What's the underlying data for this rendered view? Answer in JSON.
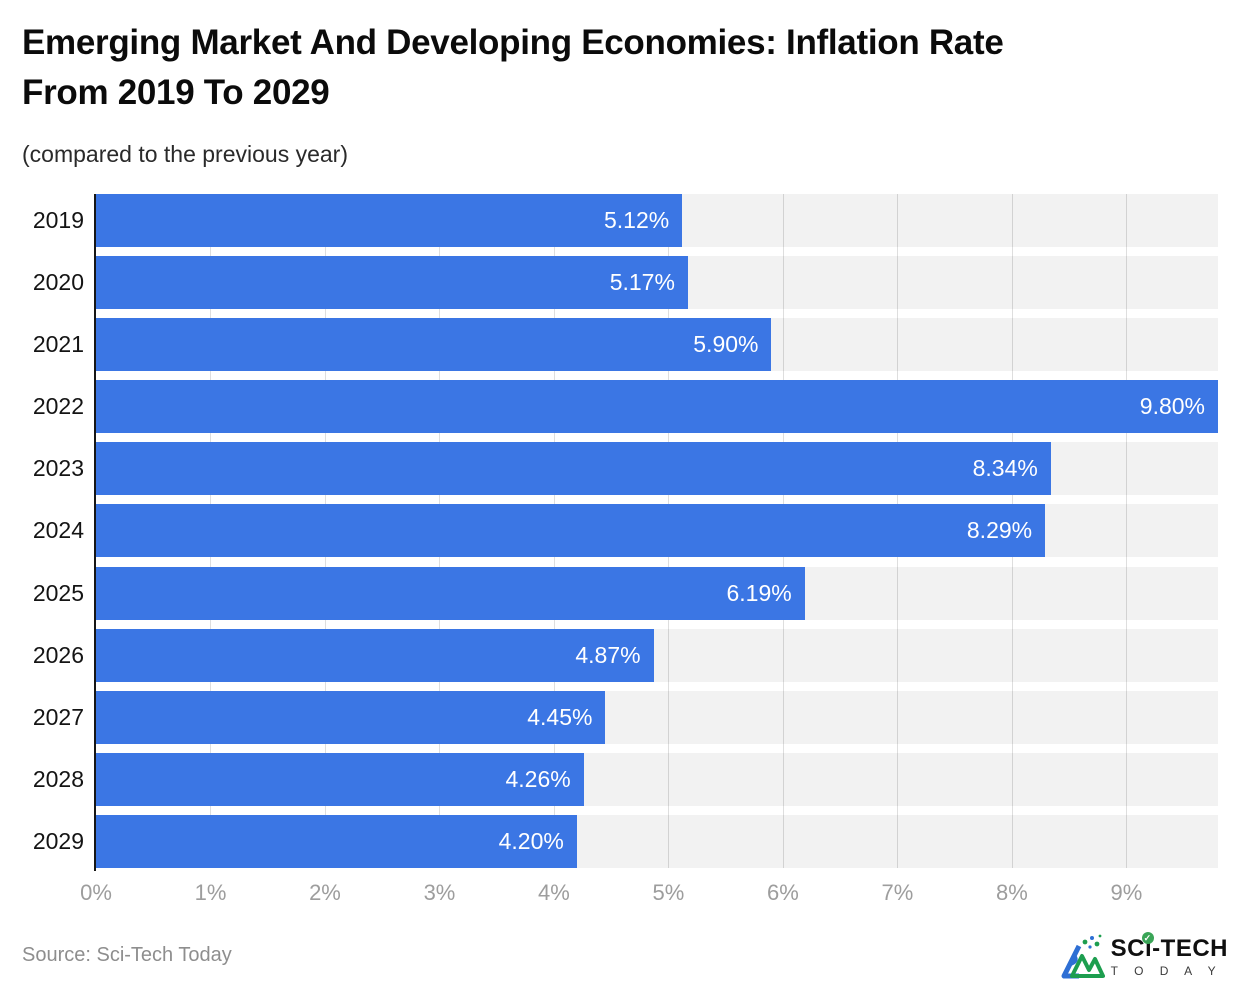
{
  "header": {
    "title_lines": [
      "Emerging Market And Developing Economies: Inflation Rate",
      "From 2019 To 2029"
    ],
    "subtitle": "(compared to the previous year)"
  },
  "chart_data": {
    "type": "bar",
    "orientation": "horizontal",
    "title": "Emerging Market And Developing Economies: Inflation Rate From 2019 To 2029",
    "subtitle": "(compared to the previous year)",
    "categories": [
      "2019",
      "2020",
      "2021",
      "2022",
      "2023",
      "2024",
      "2025",
      "2026",
      "2027",
      "2028",
      "2029"
    ],
    "values": [
      5.12,
      5.17,
      5.9,
      9.8,
      8.34,
      8.29,
      6.19,
      4.87,
      4.45,
      4.26,
      4.2
    ],
    "value_labels": [
      "5.12%",
      "5.17%",
      "5.90%",
      "9.80%",
      "8.34%",
      "8.29%",
      "6.19%",
      "4.87%",
      "4.45%",
      "4.26%",
      "4.20%"
    ],
    "xlabel": "",
    "ylabel": "",
    "xlim": [
      0,
      9.8
    ],
    "x_ticks": [
      0,
      1,
      2,
      3,
      4,
      5,
      6,
      7,
      8,
      9
    ],
    "x_tick_labels": [
      "0%",
      "1%",
      "2%",
      "3%",
      "4%",
      "5%",
      "6%",
      "7%",
      "8%",
      "9%"
    ],
    "grid": true,
    "legend": false,
    "bar_color": "#3b76e4",
    "row_bg_color": "#f2f2f2",
    "label_color": "#ffffff"
  },
  "footer": {
    "source": "Source: Sci-Tech Today",
    "logo": {
      "brand": "SCi-TECH",
      "brand_sub": "T O D A Y",
      "check_glyph": "✓",
      "brand_color": "#101010",
      "green": "#3aa557",
      "blue": "#2e6fd4"
    }
  }
}
